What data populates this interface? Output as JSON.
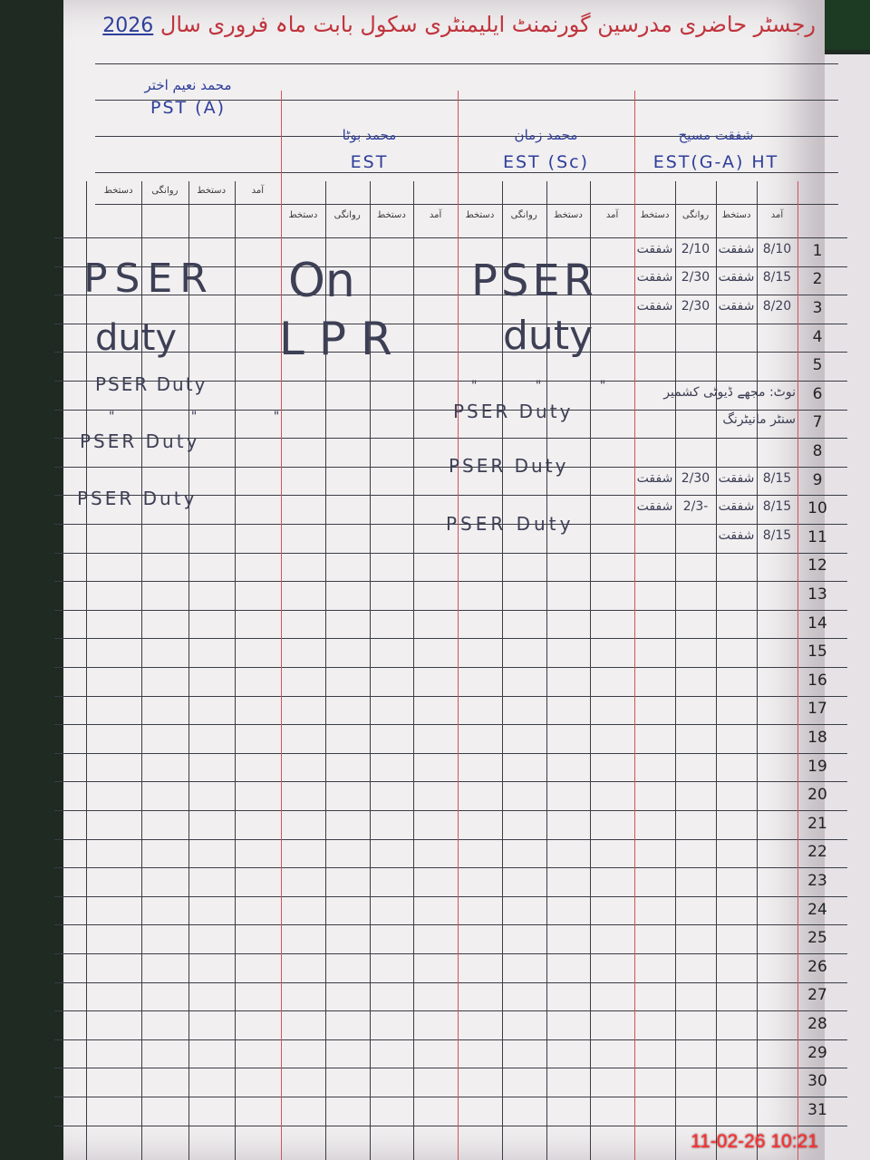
{
  "header": {
    "title": "رجسٹر حاضری مدرسین گورنمنٹ ایلیمنٹری سکول بابت ماہ فروری سال",
    "year": "2026"
  },
  "teachers": [
    {
      "name": "شفقت مسیح",
      "designation": "EST(G-A) HT"
    },
    {
      "name": "محمد زمان",
      "designation": "EST (Sc)"
    },
    {
      "name": "محمد بوٹا",
      "designation": "EST"
    },
    {
      "name": "محمد نعیم اختر",
      "designation": "PST (A)"
    }
  ],
  "subcolumns": [
    "آمد",
    "دستخط",
    "روانگی",
    "دستخط"
  ],
  "days": [
    "1",
    "2",
    "3",
    "4",
    "5",
    "6",
    "7",
    "8",
    "9",
    "10",
    "11",
    "12",
    "13",
    "14",
    "15",
    "16",
    "17",
    "18",
    "19",
    "20",
    "21",
    "22",
    "23",
    "24",
    "25",
    "26",
    "27",
    "28",
    "29",
    "30",
    "31"
  ],
  "entries_teacher1": [
    {
      "day": 1,
      "arrival": "8/10",
      "sign_in": "شفقت",
      "departure": "2/10",
      "sign_out": "شفقت"
    },
    {
      "day": 2,
      "arrival": "8/15",
      "sign_in": "شفقت",
      "departure": "2/30",
      "sign_out": "شفقت"
    },
    {
      "day": 3,
      "arrival": "8/20",
      "sign_in": "شفقت",
      "departure": "2/30",
      "sign_out": "شفقت"
    },
    {
      "day": 9,
      "arrival": "8/15",
      "sign_in": "شفقت",
      "departure": "2/30",
      "sign_out": "شفقت"
    },
    {
      "day": 10,
      "arrival": "8/15",
      "sign_in": "شفقت",
      "departure": "2/3-",
      "sign_out": "شفقت"
    },
    {
      "day": 11,
      "arrival": "8/15",
      "sign_in": "شفقت",
      "departure": "",
      "sign_out": ""
    }
  ],
  "teacher1_note": [
    "نوٹ: مجھے ڈیوٹی کشمیر",
    "سنٹر مانیٹرنگ"
  ],
  "teacher2_notes": {
    "big": [
      "PSER",
      "duty"
    ],
    "rows": [
      "PSER Duty",
      "PSER Duty",
      "PSER Duty"
    ],
    "ditto": "\"  \"  \""
  },
  "teacher3_notes": {
    "big": [
      "On",
      "LPR"
    ]
  },
  "teacher4_notes": {
    "big": [
      "PSER",
      "duty"
    ],
    "rows": [
      "PSER Duty",
      "PSER Duty",
      "PSER Duty"
    ],
    "ditto": "\"  \"  \""
  },
  "timestamp": "11-02-26  10:21"
}
